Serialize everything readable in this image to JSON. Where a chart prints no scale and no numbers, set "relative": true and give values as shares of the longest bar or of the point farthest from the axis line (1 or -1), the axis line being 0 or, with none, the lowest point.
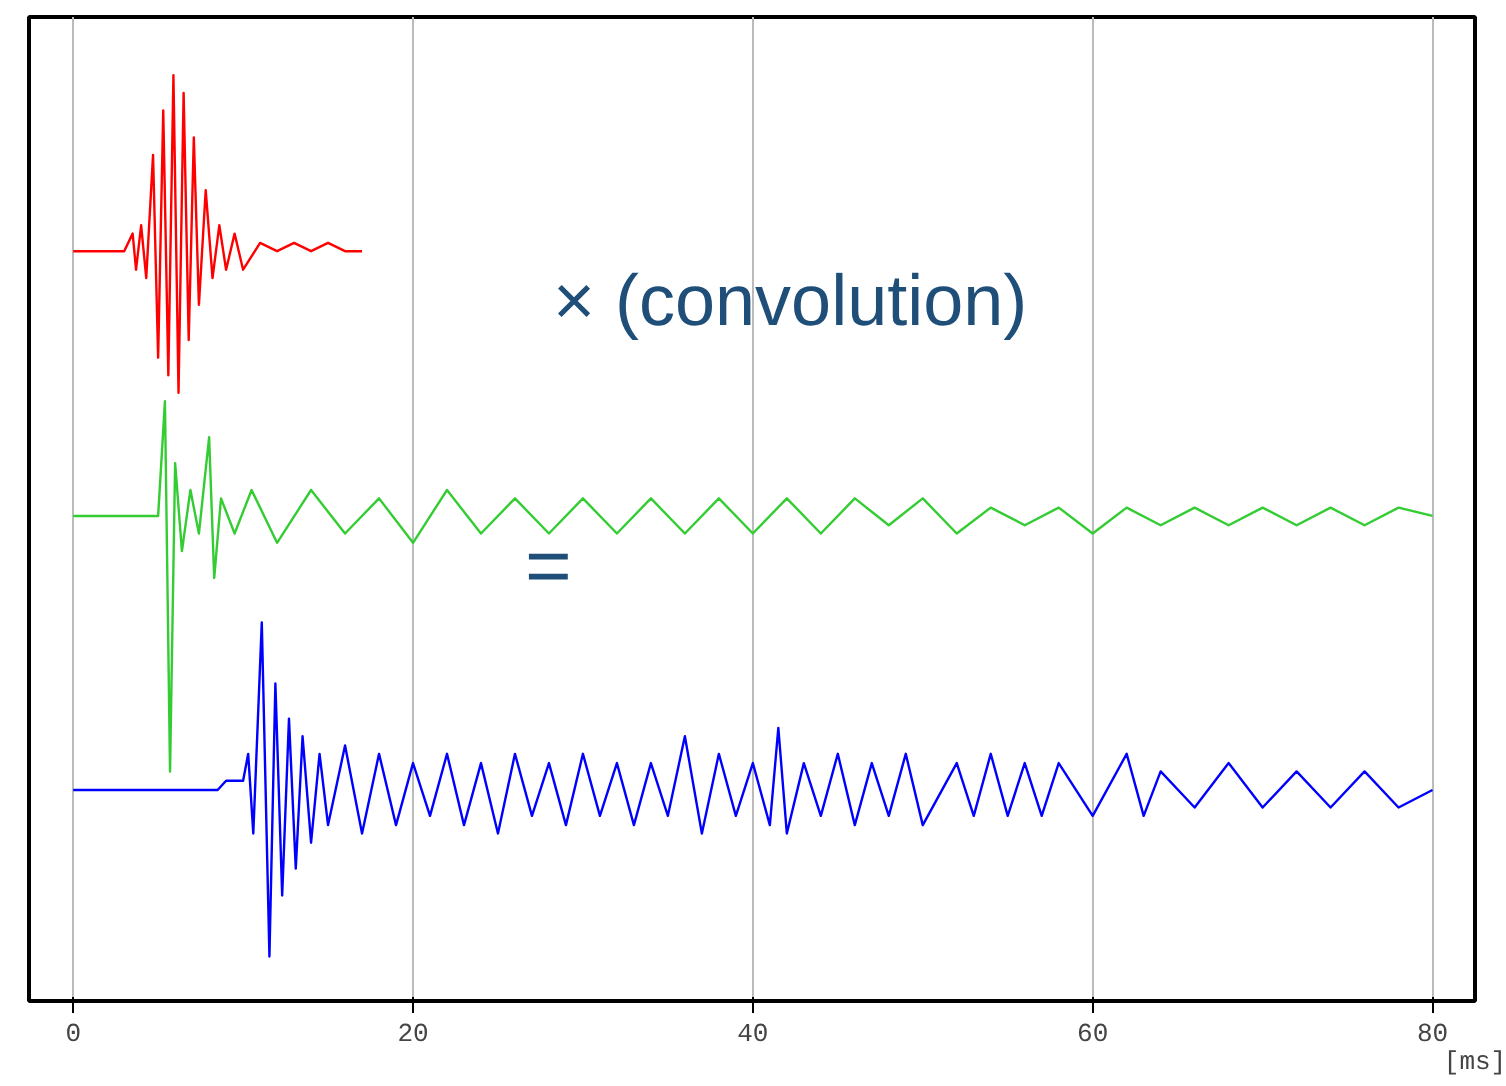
{
  "chart_data": {
    "type": "line",
    "relative": true,
    "xlabel": "[ms]",
    "xlim": [
      -2.6,
      82.5
    ],
    "xticks": [
      0,
      20,
      40,
      60,
      80
    ],
    "grid": "x",
    "tick_labels": "x",
    "annotations": [
      "× (convolution)",
      "="
    ],
    "series": [
      {
        "color": "#ff0000",
        "x": [
          0,
          3.0,
          3.5,
          3.7,
          4.0,
          4.3,
          4.7,
          5.0,
          5.3,
          5.6,
          5.9,
          6.2,
          6.5,
          6.8,
          7.1,
          7.4,
          7.8,
          8.2,
          8.6,
          9.0,
          9.5,
          10,
          11,
          12,
          13,
          14,
          15,
          16,
          17
        ],
        "values": [
          0.81,
          0.81,
          0.829,
          0.79,
          0.838,
          0.781,
          0.914,
          0.695,
          0.962,
          0.676,
          1.0,
          0.657,
          0.981,
          0.714,
          0.933,
          0.752,
          0.876,
          0.781,
          0.838,
          0.79,
          0.829,
          0.79,
          0.819,
          0.81,
          0.819,
          0.81,
          0.819,
          0.81,
          0.81
        ]
      },
      {
        "color": "#33cc33",
        "x": [
          0,
          5.0,
          5.4,
          5.7,
          6.0,
          6.4,
          6.9,
          7.4,
          8.0,
          8.3,
          8.7,
          9.5,
          10.5,
          12,
          14,
          16,
          18,
          20,
          22,
          24,
          26,
          28,
          30,
          32,
          34,
          36,
          38,
          40,
          42,
          44,
          46,
          48,
          50,
          52,
          54,
          56,
          58,
          60,
          62,
          64,
          66,
          68,
          70,
          72,
          74,
          76,
          78,
          80
        ],
        "values": [
          0.524,
          0.524,
          0.648,
          0.248,
          0.581,
          0.486,
          0.552,
          0.505,
          0.609,
          0.457,
          0.543,
          0.505,
          0.552,
          0.495,
          0.552,
          0.505,
          0.543,
          0.495,
          0.552,
          0.505,
          0.543,
          0.505,
          0.543,
          0.505,
          0.543,
          0.505,
          0.543,
          0.505,
          0.543,
          0.505,
          0.543,
          0.514,
          0.543,
          0.505,
          0.533,
          0.514,
          0.533,
          0.505,
          0.533,
          0.514,
          0.533,
          0.514,
          0.533,
          0.514,
          0.533,
          0.514,
          0.533,
          0.524
        ]
      },
      {
        "color": "#0000ff",
        "x": [
          0,
          8.5,
          9.0,
          10.0,
          10.3,
          10.6,
          11.1,
          11.55,
          11.9,
          12.3,
          12.7,
          13.1,
          13.5,
          14.0,
          14.5,
          15,
          16,
          17,
          18,
          19,
          20,
          21,
          22,
          23,
          24,
          25,
          26,
          27,
          28,
          29,
          30,
          31,
          32,
          33,
          34,
          35,
          36,
          37,
          38,
          39,
          40,
          41,
          41.5,
          42,
          43,
          44,
          45,
          46,
          47,
          48,
          49,
          50,
          52,
          53,
          54,
          55,
          56,
          57,
          58,
          60,
          62,
          63,
          64,
          66,
          68,
          70,
          72,
          74,
          76,
          78,
          80
        ],
        "values": [
          0.228,
          0.228,
          0.238,
          0.238,
          0.267,
          0.181,
          0.409,
          0.048,
          0.343,
          0.114,
          0.305,
          0.143,
          0.286,
          0.171,
          0.267,
          0.19,
          0.276,
          0.181,
          0.267,
          0.19,
          0.257,
          0.2,
          0.267,
          0.19,
          0.257,
          0.181,
          0.267,
          0.2,
          0.257,
          0.19,
          0.267,
          0.2,
          0.257,
          0.19,
          0.257,
          0.2,
          0.286,
          0.181,
          0.267,
          0.2,
          0.257,
          0.19,
          0.295,
          0.181,
          0.257,
          0.2,
          0.267,
          0.19,
          0.257,
          0.2,
          0.267,
          0.19,
          0.257,
          0.2,
          0.267,
          0.2,
          0.257,
          0.2,
          0.257,
          0.2,
          0.267,
          0.2,
          0.248,
          0.209,
          0.257,
          0.209,
          0.248,
          0.209,
          0.248,
          0.209,
          0.228
        ]
      }
    ]
  }
}
